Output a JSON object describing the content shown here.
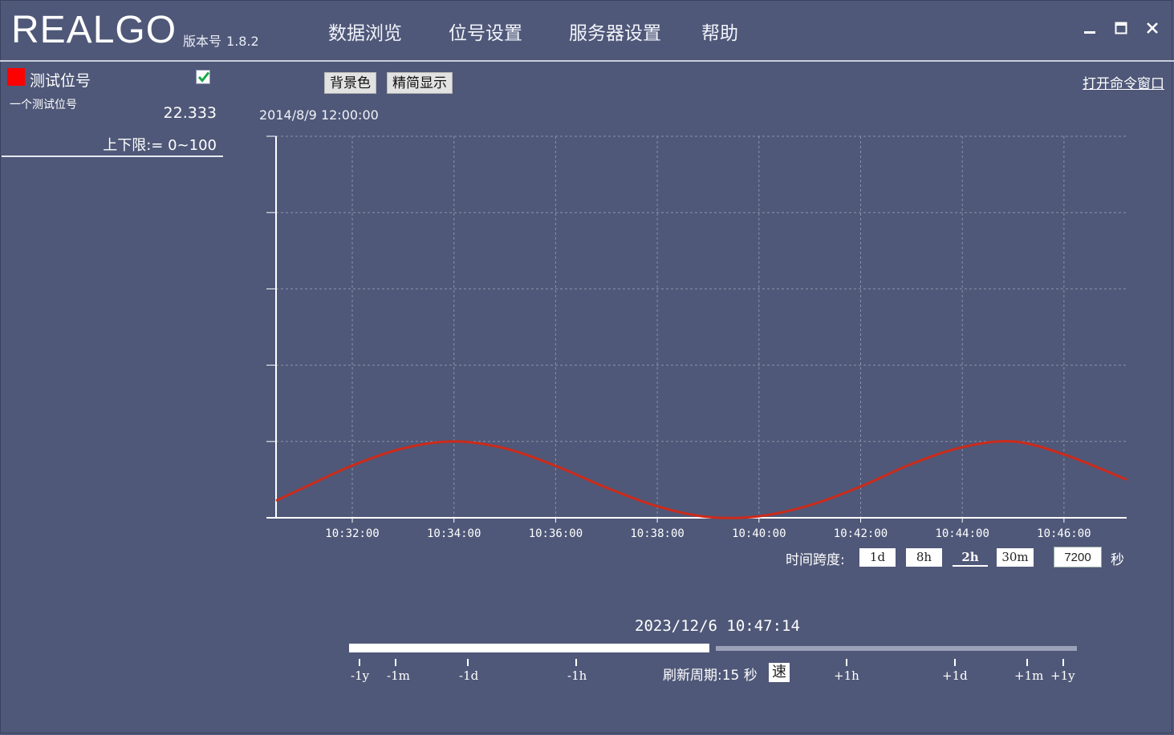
{
  "app": {
    "logo": "REALGO",
    "version_label": "版本号",
    "version": "1.8.2"
  },
  "menu": [
    "数据浏览",
    "位号设置",
    "服务器设置",
    "帮助"
  ],
  "window_controls": {
    "minimize": "–",
    "maximize": "▭",
    "close": "✕"
  },
  "tag": {
    "color": "#ff0000",
    "name": "测试位号",
    "checked": true,
    "description": "一个测试位号",
    "value": "22.333",
    "limit": "上下限:= 0~100"
  },
  "toolbar": {
    "background_color_button": "背景色",
    "compact_display_button": "精简显示",
    "open_command_window": "打开命令窗口"
  },
  "chart_header_time": "2014/8/9 12:00:00",
  "chart_data": {
    "type": "line",
    "title": "",
    "xlabel": "",
    "ylabel": "",
    "x_ticks": [
      "10:32:00",
      "10:34:00",
      "10:36:00",
      "10:38:00",
      "10:40:00",
      "10:42:00",
      "10:44:00",
      "10:46:00"
    ],
    "x_range": [
      "10:30:30",
      "10:47:14"
    ],
    "ylim": [
      0,
      100
    ],
    "y_gridlines": [
      0,
      20,
      40,
      60,
      80,
      100
    ],
    "grid": true,
    "series": [
      {
        "color": "#cc2a1a",
        "x": [
          "10:30:30",
          "10:31:00",
          "10:32:00",
          "10:33:00",
          "10:34:00",
          "10:35:00",
          "10:36:00",
          "10:37:00",
          "10:38:00",
          "10:39:00",
          "10:40:00",
          "10:41:00",
          "10:42:00",
          "10:43:00",
          "10:44:00",
          "10:45:00",
          "10:46:00",
          "10:47:14"
        ],
        "values": [
          4.5,
          7.6,
          13.7,
          18.2,
          20.0,
          18.2,
          13.6,
          7.9,
          3.0,
          0.2,
          0.4,
          3.3,
          8.2,
          14.1,
          18.5,
          20.0,
          16.6,
          10.0
        ]
      }
    ]
  },
  "span": {
    "label": "时间跨度:",
    "options": [
      "1d",
      "8h",
      "2h",
      "30m"
    ],
    "selected": "2h",
    "seconds": "7200",
    "unit": "秒"
  },
  "navigator": {
    "current_time": "2023/12/6 10:47:14",
    "back_labels": [
      "-1y",
      "-1m",
      "-1d",
      "-1h"
    ],
    "forward_labels": [
      "+1h",
      "+1d",
      "+1m",
      "+1y"
    ],
    "refresh_label": "刷新周期:15 秒",
    "speed_button": "速"
  }
}
